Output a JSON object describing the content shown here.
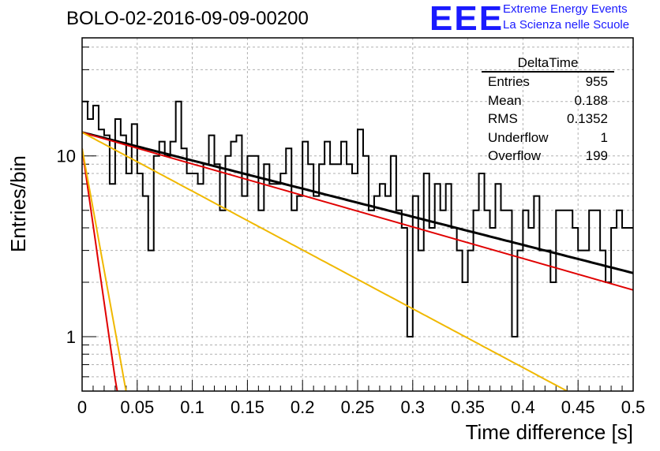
{
  "title": "BOLO-02-2016-09-09-00200",
  "logo": {
    "mark": "EEE",
    "line1": "Extreme Energy Events",
    "line2": "La Scienza nelle Scuole",
    "color": "#1a1aff"
  },
  "stats_box": {
    "name": "DeltaTime",
    "rows": [
      {
        "label": "Entries",
        "value": "955"
      },
      {
        "label": "Mean",
        "value": "0.188"
      },
      {
        "label": "RMS",
        "value": "0.1352"
      },
      {
        "label": "Underflow",
        "value": "1"
      },
      {
        "label": "Overflow",
        "value": "199"
      }
    ]
  },
  "chart_data": {
    "type": "line",
    "title": "BOLO-02-2016-09-09-00200",
    "xlabel": "Time difference [s]",
    "ylabel": "Entries/bin",
    "xlim": [
      0,
      0.5
    ],
    "ylim": [
      0.5,
      45
    ],
    "y_scale": "log",
    "grid": true,
    "x_ticks": [
      "0",
      "0.05",
      "0.1",
      "0.15",
      "0.2",
      "0.25",
      "0.3",
      "0.35",
      "0.4",
      "0.45",
      "0.5"
    ],
    "y_ticks": [
      "1",
      "10"
    ],
    "histogram": {
      "bin_width": 0.005,
      "values": [
        20,
        16,
        19,
        14,
        13,
        7,
        16,
        13,
        8,
        15,
        8,
        6,
        3,
        10,
        12,
        10,
        12,
        20,
        11,
        8,
        8,
        7,
        9,
        13,
        9,
        5,
        10,
        12,
        13,
        6,
        10,
        10,
        5,
        9,
        7,
        7,
        8,
        11,
        5,
        6,
        12,
        9,
        6,
        9,
        12,
        9,
        9,
        12,
        9,
        8,
        14,
        10,
        5,
        6,
        7,
        6,
        10,
        5,
        4,
        1,
        6,
        3,
        8,
        4,
        7,
        5,
        7,
        4,
        3,
        2,
        3,
        5,
        8,
        5,
        4,
        7,
        5,
        5,
        1,
        3,
        5,
        4,
        6,
        3,
        3,
        2,
        5,
        5,
        5,
        4,
        3,
        3,
        5,
        5,
        3,
        2,
        4,
        5,
        4,
        4
      ],
      "color": "#000000"
    },
    "series": [
      {
        "name": "",
        "color": "#000000",
        "width": 3,
        "A": 13.5,
        "tau": 0.279
      },
      {
        "name": "",
        "color": "#e00000",
        "width": 2,
        "A": 13.5,
        "tau": 0.249
      },
      {
        "name": "",
        "color": "#f0b800",
        "width": 2,
        "A": 13.5,
        "tau": 0.1335
      },
      {
        "name": "",
        "color": "#e00000",
        "width": 2,
        "A": 11.0,
        "tau": 0.0102
      },
      {
        "name": "",
        "color": "#f0b800",
        "width": 2,
        "A": 11.0,
        "tau": 0.0129
      }
    ]
  }
}
